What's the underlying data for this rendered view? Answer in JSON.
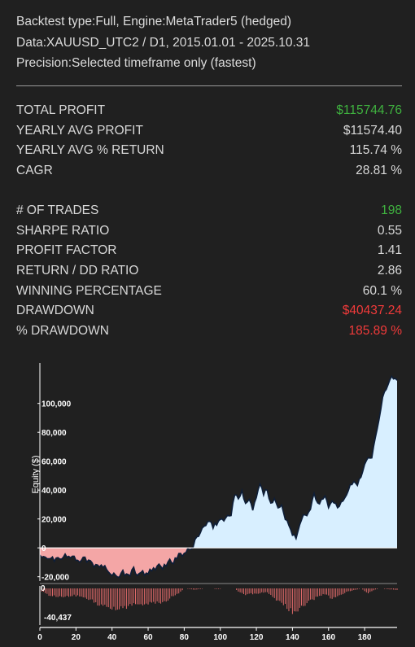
{
  "header": {
    "line1": "Backtest type:Full, Engine:MetaTrader5 (hedged)",
    "line2": "Data:XAUUSD_UTC2 / D1, 2015.01.01 - 2025.10.31",
    "line3": "Precision:Selected timeframe only (fastest)"
  },
  "stats_group1": [
    {
      "label": "TOTAL PROFIT",
      "value": "$115744.76",
      "color": "green"
    },
    {
      "label": "YEARLY AVG PROFIT",
      "value": "$11574.40",
      "color": "normal"
    },
    {
      "label": "YEARLY AVG % RETURN",
      "value": "115.74 %",
      "color": "normal"
    },
    {
      "label": "CAGR",
      "value": "28.81 %",
      "color": "normal"
    }
  ],
  "stats_group2": [
    {
      "label": "# OF TRADES",
      "value": "198",
      "color": "green"
    },
    {
      "label": "SHARPE RATIO",
      "value": "0.55",
      "color": "normal"
    },
    {
      "label": "PROFIT FACTOR",
      "value": "1.41",
      "color": "normal"
    },
    {
      "label": "RETURN / DD RATIO",
      "value": "2.86",
      "color": "normal"
    },
    {
      "label": "WINNING PERCENTAGE",
      "value": "60.1 %",
      "color": "normal"
    },
    {
      "label": "DRAWDOWN",
      "value": "$40437.24",
      "color": "red"
    },
    {
      "label": "% DRAWDOWN",
      "value": "185.89 %",
      "color": "red"
    }
  ],
  "chart_data": {
    "type": "area",
    "ylabel": "Equity ($)",
    "xlim": [
      0,
      198
    ],
    "ylim": [
      -23000,
      128000
    ],
    "x_ticks": [
      0,
      20,
      40,
      60,
      80,
      100,
      120,
      140,
      160,
      180
    ],
    "y_ticks": [
      100000,
      80000,
      60000,
      40000,
      20000,
      0,
      -20000
    ],
    "y_tick_labels": [
      "100,000",
      "80,000",
      "60,000",
      "40,000",
      "20,000",
      "0",
      "-20,000"
    ],
    "equity_keypoints": [
      [
        0,
        -5000
      ],
      [
        2,
        -7000
      ],
      [
        4,
        -8000
      ],
      [
        6,
        -6000
      ],
      [
        8,
        -10000
      ],
      [
        10,
        -6000
      ],
      [
        12,
        -8000
      ],
      [
        14,
        -4000
      ],
      [
        16,
        -7000
      ],
      [
        18,
        -5000
      ],
      [
        20,
        -7000
      ],
      [
        22,
        -9000
      ],
      [
        24,
        -6000
      ],
      [
        26,
        -10000
      ],
      [
        28,
        -8000
      ],
      [
        30,
        -13000
      ],
      [
        32,
        -11000
      ],
      [
        34,
        -13000
      ],
      [
        36,
        -12000
      ],
      [
        38,
        -18000
      ],
      [
        40,
        -20000
      ],
      [
        42,
        -18000
      ],
      [
        44,
        -20000
      ],
      [
        46,
        -17000
      ],
      [
        48,
        -19000
      ],
      [
        50,
        -18000
      ],
      [
        52,
        -15000
      ],
      [
        54,
        -18000
      ],
      [
        56,
        -16000
      ],
      [
        58,
        -19000
      ],
      [
        60,
        -17000
      ],
      [
        62,
        -16000
      ],
      [
        64,
        -15000
      ],
      [
        66,
        -12000
      ],
      [
        68,
        -14000
      ],
      [
        70,
        -11000
      ],
      [
        72,
        -9000
      ],
      [
        74,
        -10000
      ],
      [
        76,
        -6000
      ],
      [
        78,
        -5000
      ],
      [
        80,
        -4000
      ],
      [
        82,
        -2000
      ],
      [
        84,
        -1000
      ],
      [
        86,
        5000
      ],
      [
        88,
        9000
      ],
      [
        90,
        13000
      ],
      [
        92,
        16000
      ],
      [
        94,
        17000
      ],
      [
        96,
        15000
      ],
      [
        98,
        17000
      ],
      [
        100,
        20000
      ],
      [
        102,
        19000
      ],
      [
        104,
        22000
      ],
      [
        106,
        24000
      ],
      [
        108,
        37000
      ],
      [
        110,
        33000
      ],
      [
        112,
        40000
      ],
      [
        114,
        31000
      ],
      [
        116,
        33000
      ],
      [
        118,
        27000
      ],
      [
        120,
        34000
      ],
      [
        122,
        45000
      ],
      [
        124,
        37000
      ],
      [
        126,
        40000
      ],
      [
        128,
        31000
      ],
      [
        130,
        35000
      ],
      [
        132,
        28000
      ],
      [
        134,
        29000
      ],
      [
        136,
        20000
      ],
      [
        138,
        17000
      ],
      [
        140,
        10000
      ],
      [
        142,
        8000
      ],
      [
        144,
        15000
      ],
      [
        146,
        23000
      ],
      [
        148,
        21000
      ],
      [
        150,
        28000
      ],
      [
        152,
        37000
      ],
      [
        154,
        30000
      ],
      [
        156,
        34000
      ],
      [
        158,
        35000
      ],
      [
        160,
        28000
      ],
      [
        162,
        31000
      ],
      [
        164,
        30000
      ],
      [
        166,
        29000
      ],
      [
        168,
        33000
      ],
      [
        170,
        38000
      ],
      [
        172,
        42000
      ],
      [
        174,
        46000
      ],
      [
        176,
        44000
      ],
      [
        178,
        50000
      ],
      [
        180,
        57000
      ],
      [
        182,
        63000
      ],
      [
        184,
        64000
      ],
      [
        186,
        78000
      ],
      [
        188,
        90000
      ],
      [
        190,
        104000
      ],
      [
        192,
        110000
      ],
      [
        194,
        118000
      ],
      [
        196,
        117000
      ],
      [
        198,
        116000
      ]
    ],
    "drawdown_min_label": "-40,437",
    "drawdown_min": -40437,
    "drawdown_zero_label": "0",
    "drawdown_keypoints": [
      [
        0,
        -3000
      ],
      [
        6,
        -12000
      ],
      [
        12,
        -14000
      ],
      [
        18,
        -11000
      ],
      [
        24,
        -14000
      ],
      [
        30,
        -22000
      ],
      [
        36,
        -30000
      ],
      [
        42,
        -33000
      ],
      [
        48,
        -29000
      ],
      [
        54,
        -27000
      ],
      [
        60,
        -25000
      ],
      [
        66,
        -24000
      ],
      [
        70,
        -20000
      ],
      [
        74,
        -12000
      ],
      [
        78,
        -6000
      ],
      [
        80,
        0
      ],
      [
        86,
        -2000
      ],
      [
        92,
        0
      ],
      [
        98,
        -1000
      ],
      [
        104,
        0
      ],
      [
        108,
        0
      ],
      [
        110,
        -6000
      ],
      [
        114,
        -10000
      ],
      [
        120,
        -8000
      ],
      [
        126,
        -6000
      ],
      [
        130,
        -18000
      ],
      [
        134,
        -24000
      ],
      [
        138,
        -34000
      ],
      [
        142,
        -40437
      ],
      [
        146,
        -30000
      ],
      [
        150,
        -20000
      ],
      [
        154,
        -13000
      ],
      [
        158,
        -10000
      ],
      [
        162,
        -16000
      ],
      [
        166,
        -12000
      ],
      [
        170,
        -5000
      ],
      [
        174,
        -3000
      ],
      [
        178,
        0
      ],
      [
        182,
        -8000
      ],
      [
        184,
        -4000
      ],
      [
        188,
        0
      ],
      [
        198,
        -2500
      ]
    ],
    "colors": {
      "positive_fill": "#d8efff",
      "negative_fill": "#f4a6a6",
      "line": "#0e1e38",
      "drawdown_bar": "#e06a6a",
      "axis": "#ffffff",
      "background": "#202020"
    }
  }
}
